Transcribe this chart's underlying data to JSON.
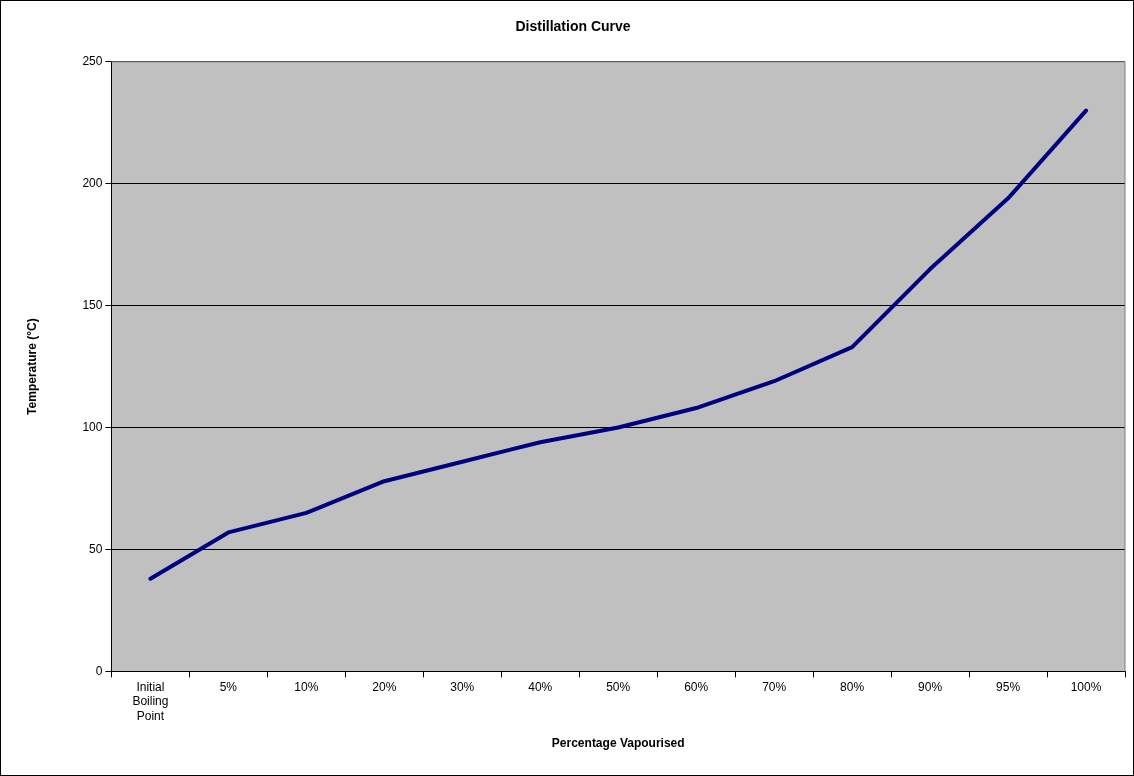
{
  "chart_data": {
    "type": "line",
    "title": "Distillation Curve",
    "xlabel": "Percentage Vapourised",
    "ylabel": "Temperature (°C)",
    "categories": [
      "Initial Boiling Point",
      "5%",
      "10%",
      "20%",
      "30%",
      "40%",
      "50%",
      "60%",
      "70%",
      "80%",
      "90%",
      "95%",
      "100%"
    ],
    "series": [
      {
        "color": "#000080",
        "values": [
          38,
          57,
          65,
          78,
          86,
          94,
          100,
          108,
          119,
          133,
          165,
          194,
          230
        ]
      }
    ],
    "ylim": [
      0,
      250
    ],
    "yticks": [
      0,
      50,
      100,
      150,
      200,
      250
    ],
    "grid": "y",
    "legend": false,
    "marker": "none",
    "line_style": "solid"
  }
}
